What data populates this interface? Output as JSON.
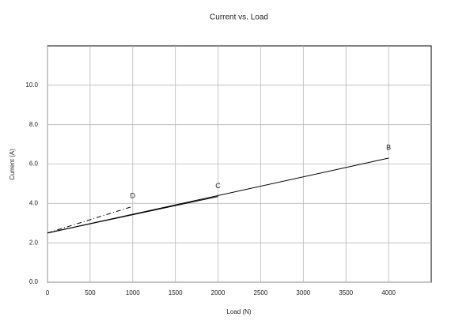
{
  "chart_data": {
    "type": "line",
    "title": "Current vs. Load",
    "x_label": "Load (N)",
    "y_label": "Current (A)",
    "xlim": [
      0,
      4500
    ],
    "xticks": [
      0,
      500,
      1000,
      1500,
      2000,
      2500,
      3000,
      3500,
      4000
    ],
    "ylim": [
      0,
      12
    ],
    "yticks": [
      {
        "value": 0,
        "label": "0.0"
      },
      {
        "value": 2,
        "label": "2.0"
      },
      {
        "value": 4,
        "label": "4.0"
      },
      {
        "value": 6,
        "label": "6.0"
      },
      {
        "value": 8,
        "label": "8.0"
      },
      {
        "value": 10,
        "label": "10.0"
      }
    ],
    "grid": true,
    "series": [
      {
        "name": "B",
        "color": "#000000",
        "dash": "solid",
        "x": [
          0,
          4000
        ],
        "values": [
          2.5,
          6.3
        ]
      },
      {
        "name": "C",
        "color": "#000000",
        "dash": "solid",
        "x": [
          0,
          2000
        ],
        "values": [
          2.5,
          4.35
        ]
      },
      {
        "name": "D",
        "color": "#000000",
        "dash": "dash-dot",
        "x": [
          0,
          1000
        ],
        "values": [
          2.5,
          3.85
        ]
      }
    ]
  }
}
